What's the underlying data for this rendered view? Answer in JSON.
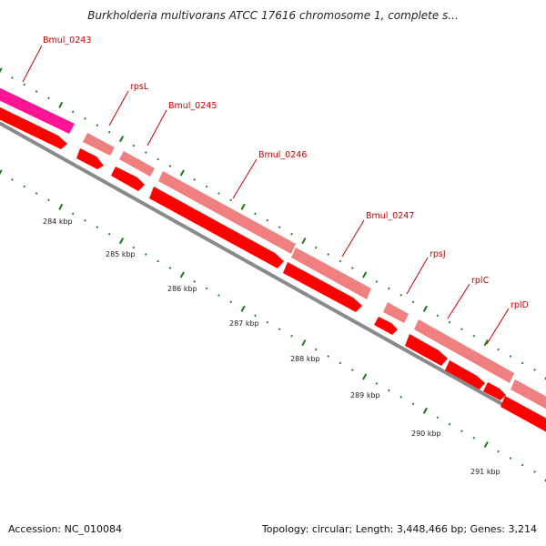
{
  "header": {
    "title": "Burkholderia multivorans ATCC 17616 chromosome 1, complete s..."
  },
  "footer": {
    "accession": "Accession: NC_010084",
    "summary": "Topology: circular; Length: 3,448,466 bp; Genes: 3,214"
  },
  "colors": {
    "cds": "#ff0000",
    "gene": "#f08080",
    "highlight": "#ff1493",
    "backbone": "#808080",
    "tick": "#1a7a1a",
    "label": "#cc0000"
  },
  "genes": [
    {
      "name": "Bmul_0243"
    },
    {
      "name": "rpsL"
    },
    {
      "name": "Bmul_0245"
    },
    {
      "name": "Bmul_0246"
    },
    {
      "name": "Bmul_0247"
    },
    {
      "name": "rpsJ"
    },
    {
      "name": "rplC"
    },
    {
      "name": "rplD"
    }
  ],
  "kbp_labels": [
    "284 kbp",
    "285 kbp",
    "286 kbp",
    "287 kbp",
    "288 kbp",
    "289 kbp",
    "290 kbp",
    "291 kbp"
  ]
}
